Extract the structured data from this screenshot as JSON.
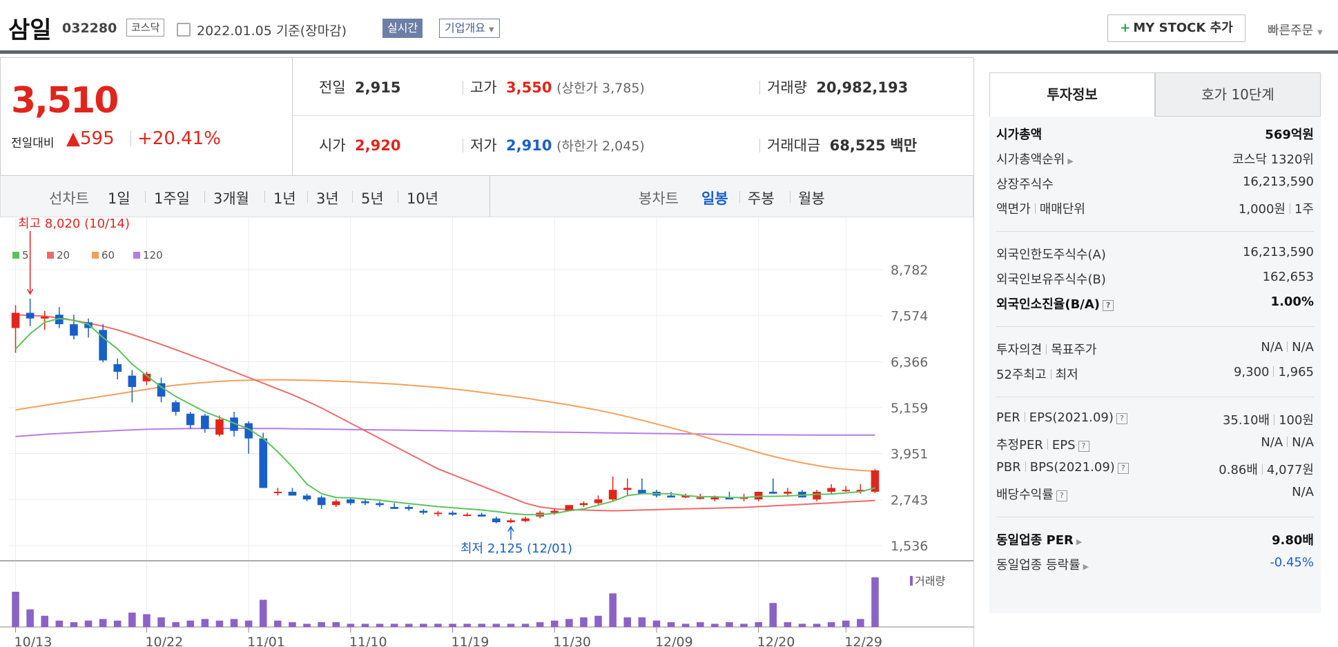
{
  "header": {
    "name": "삼일",
    "code": "032280",
    "market": "코스닥",
    "date": "2022.01.05 기준(장마감)",
    "realtime": "실시간",
    "company_info": "기업개요",
    "my_stock": "MY STOCK 추가",
    "quick_order": "빠른주문"
  },
  "price": {
    "current": "3,510",
    "change_label": "전일대비",
    "change": "▲595",
    "rate": "+20.41%"
  },
  "stats": {
    "prev_label": "전일",
    "prev": "2,915",
    "high_label": "고가",
    "high": "3,550",
    "upper_limit": "(상한가 3,785)",
    "volume_label": "거래량",
    "volume": "20,982,193",
    "open_label": "시가",
    "open": "2,920",
    "low_label": "저가",
    "low": "2,910",
    "lower_limit": "(하한가 2,045)",
    "amount_label": "거래대금",
    "amount": "68,525",
    "amount_unit": "백만"
  },
  "periods": {
    "line_label": "선차트",
    "line": [
      "1일",
      "1주일",
      "3개월",
      "1년",
      "3년",
      "5년",
      "10년"
    ],
    "candle_label": "봉차트",
    "candle": [
      "일봉",
      "주봉",
      "월봉"
    ]
  },
  "colors": {
    "up": "#e1251b",
    "down": "#1a5fc9",
    "ma5": "#5cc35c",
    "ma20": "#f06a6a",
    "ma60": "#f5a05a",
    "ma120": "#b47de6",
    "volume": "#8b62c8"
  },
  "chart_data": {
    "type": "candlestick",
    "legend": [
      "5",
      "20",
      "60",
      "120"
    ],
    "y_ticks": [
      "8,782",
      "7,574",
      "6,366",
      "5,159",
      "3,951",
      "2,743",
      "1,536"
    ],
    "ylim": [
      1536,
      8782
    ],
    "x_labels": [
      "10/13",
      "10/22",
      "11/01",
      "11/10",
      "11/19",
      "11/30",
      "12/09",
      "12/20",
      "12/29"
    ],
    "high_note": "최고 8,020 (10/14)",
    "low_note": "최저 2,125 (12/01)",
    "volume_label": "거래량",
    "candles": [
      [
        7250,
        7850,
        6600,
        7650
      ],
      [
        7650,
        8020,
        7300,
        7500
      ],
      [
        7500,
        7700,
        7200,
        7550
      ],
      [
        7600,
        7800,
        7250,
        7350
      ],
      [
        7350,
        7600,
        6950,
        7050
      ],
      [
        7400,
        7500,
        7000,
        7250
      ],
      [
        7200,
        7350,
        6350,
        6400
      ],
      [
        6300,
        6450,
        5900,
        6100
      ],
      [
        6000,
        6150,
        5300,
        5700
      ],
      [
        5850,
        6100,
        5750,
        6050
      ],
      [
        5800,
        5950,
        5300,
        5450
      ],
      [
        5300,
        5350,
        4950,
        5050
      ],
      [
        5000,
        5050,
        4600,
        4700
      ],
      [
        4950,
        5000,
        4500,
        4600
      ],
      [
        4450,
        4950,
        4400,
        4850
      ],
      [
        4900,
        5050,
        4400,
        4550
      ],
      [
        4750,
        4800,
        3950,
        4350
      ],
      [
        4350,
        4500,
        3050,
        3050
      ],
      [
        2950,
        3050,
        2850,
        2950
      ],
      [
        2950,
        3050,
        2850,
        2850
      ],
      [
        2850,
        2900,
        2700,
        2750
      ],
      [
        2800,
        2850,
        2500,
        2600
      ],
      [
        2600,
        2750,
        2550,
        2700
      ],
      [
        2750,
        2780,
        2600,
        2650
      ],
      [
        2700,
        2750,
        2600,
        2650
      ],
      [
        2650,
        2700,
        2550,
        2600
      ],
      [
        2550,
        2650,
        2500,
        2500
      ],
      [
        2550,
        2600,
        2450,
        2500
      ],
      [
        2450,
        2500,
        2350,
        2400
      ],
      [
        2400,
        2450,
        2300,
        2400
      ],
      [
        2400,
        2450,
        2320,
        2350
      ],
      [
        2350,
        2400,
        2300,
        2350
      ],
      [
        2350,
        2400,
        2300,
        2300
      ],
      [
        2250,
        2300,
        2125,
        2150
      ],
      [
        2150,
        2250,
        2125,
        2200
      ],
      [
        2180,
        2300,
        2150,
        2250
      ],
      [
        2300,
        2450,
        2250,
        2400
      ],
      [
        2400,
        2500,
        2350,
        2450
      ],
      [
        2450,
        2600,
        2450,
        2600
      ],
      [
        2600,
        2700,
        2550,
        2650
      ],
      [
        2650,
        2850,
        2600,
        2750
      ],
      [
        2750,
        3350,
        2700,
        3000
      ],
      [
        3000,
        3300,
        2850,
        3050
      ],
      [
        3000,
        3300,
        2950,
        2900
      ],
      [
        2950,
        3000,
        2800,
        2850
      ],
      [
        2850,
        2950,
        2800,
        2800
      ],
      [
        2800,
        2900,
        2780,
        2850
      ],
      [
        2800,
        2900,
        2750,
        2800
      ],
      [
        2750,
        2850,
        2700,
        2800
      ],
      [
        2800,
        2950,
        2750,
        2750
      ],
      [
        2800,
        2900,
        2700,
        2800
      ],
      [
        2750,
        2950,
        2700,
        2950
      ],
      [
        2950,
        3300,
        2900,
        2900
      ],
      [
        2900,
        3050,
        2850,
        2950
      ],
      [
        2950,
        3000,
        2800,
        2800
      ],
      [
        2750,
        3000,
        2700,
        2950
      ],
      [
        2950,
        3150,
        2900,
        3050
      ],
      [
        3000,
        3100,
        2950,
        3000
      ],
      [
        2950,
        3150,
        2900,
        3000
      ],
      [
        2950,
        3550,
        2910,
        3510
      ]
    ],
    "volumes": [
      22,
      11,
      7,
      4,
      3,
      4,
      5,
      4,
      9,
      8,
      6,
      3,
      4,
      5,
      4,
      5,
      4,
      17,
      4,
      3,
      2,
      3,
      3,
      2,
      2,
      2,
      2,
      2,
      2,
      2,
      2,
      2,
      2,
      2,
      2,
      2,
      3,
      4,
      5,
      6,
      7,
      21,
      6,
      6,
      4,
      3,
      2,
      3,
      2,
      3,
      2,
      3,
      15,
      3,
      2,
      2,
      3,
      4,
      5,
      31
    ],
    "ma5": [
      6700,
      7100,
      7400,
      7500,
      7450,
      7350,
      7000,
      6700,
      6300,
      6000,
      5700,
      5450,
      5250,
      5050,
      4900,
      4750,
      4600,
      4350,
      4000,
      3600,
      3150,
      2900,
      2800,
      2790,
      2760,
      2730,
      2680,
      2640,
      2600,
      2560,
      2530,
      2500,
      2470,
      2430,
      2380,
      2350,
      2350,
      2380,
      2450,
      2500,
      2600,
      2700,
      2850,
      2900,
      2900,
      2900,
      2850,
      2820,
      2820,
      2800,
      2800,
      2830,
      2830,
      2840,
      2860,
      2880,
      2890,
      2920,
      2950,
      3050
    ],
    "ma20": [
      7600,
      7580,
      7560,
      7520,
      7450,
      7380,
      7300,
      7200,
      7080,
      6950,
      6820,
      6680,
      6540,
      6400,
      6250,
      6100,
      5950,
      5800,
      5650,
      5500,
      5330,
      5150,
      4950,
      4750,
      4550,
      4350,
      4150,
      3950,
      3750,
      3550,
      3400,
      3250,
      3100,
      2950,
      2800,
      2650,
      2550,
      2500,
      2480,
      2470,
      2460,
      2450,
      2460,
      2470,
      2480,
      2490,
      2500,
      2510,
      2520,
      2530,
      2540,
      2560,
      2580,
      2600,
      2620,
      2640,
      2660,
      2680,
      2700,
      2720
    ],
    "ma60": [
      5100,
      5160,
      5220,
      5280,
      5340,
      5400,
      5460,
      5520,
      5580,
      5640,
      5700,
      5750,
      5790,
      5820,
      5850,
      5870,
      5880,
      5890,
      5890,
      5885,
      5880,
      5870,
      5855,
      5840,
      5820,
      5800,
      5780,
      5750,
      5720,
      5690,
      5650,
      5610,
      5560,
      5510,
      5460,
      5410,
      5350,
      5290,
      5230,
      5160,
      5090,
      5010,
      4920,
      4830,
      4730,
      4630,
      4530,
      4420,
      4310,
      4200,
      4090,
      3980,
      3880,
      3790,
      3710,
      3640,
      3580,
      3540,
      3510,
      3490
    ],
    "ma120": [
      4400,
      4430,
      4460,
      4480,
      4500,
      4520,
      4540,
      4560,
      4575,
      4590,
      4600,
      4605,
      4610,
      4612,
      4614,
      4615,
      4614,
      4612,
      4610,
      4605,
      4600,
      4595,
      4590,
      4585,
      4580,
      4575,
      4570,
      4565,
      4560,
      4555,
      4550,
      4545,
      4540,
      4535,
      4530,
      4525,
      4520,
      4515,
      4510,
      4505,
      4500,
      4495,
      4490,
      4485,
      4480,
      4475,
      4470,
      4465,
      4460,
      4455,
      4450,
      4448,
      4446,
      4444,
      4442,
      4440,
      4440,
      4440,
      4440,
      4440
    ]
  },
  "info": {
    "tab_invest": "투자정보",
    "tab_hoga": "호가 10단계",
    "market_cap_label": "시가총액",
    "market_cap": "569",
    "market_cap_unit": "억원",
    "rank_label": "시가총액순위",
    "rank": "코스닥 1320위",
    "shares_label": "상장주식수",
    "shares": "16,213,590",
    "par_label": "액면가",
    "unit_label": "매매단위",
    "par": "1,000원",
    "unit": "1주",
    "foreign_limit_label": "외국인한도주식수(A)",
    "foreign_limit": "16,213,590",
    "foreign_hold_label": "외국인보유주식수(B)",
    "foreign_hold": "162,653",
    "foreign_rate_label": "외국인소진율(B/A)",
    "foreign_rate": "1.00%",
    "opinion_label": "투자의견",
    "target_label": "목표주가",
    "opinion": "N/A",
    "target": "N/A",
    "w52_label": "52주최고",
    "w52_low_label": "최저",
    "w52_high": "9,300",
    "w52_low": "1,965",
    "per_label": "PER",
    "eps_label": "EPS(2021.09)",
    "per": "35.10배",
    "eps": "100원",
    "eper_label": "추정PER",
    "eeps_label": "EPS",
    "eper": "N/A",
    "eeps": "N/A",
    "pbr_label": "PBR",
    "bps_label": "BPS(2021.09)",
    "pbr": "0.86배",
    "bps": "4,077원",
    "div_label": "배당수익률",
    "div": "N/A",
    "sector_per_label": "동일업종 PER",
    "sector_per": "9.80배",
    "sector_rate_label": "동일업종 등락률",
    "sector_rate": "-0.45%"
  }
}
